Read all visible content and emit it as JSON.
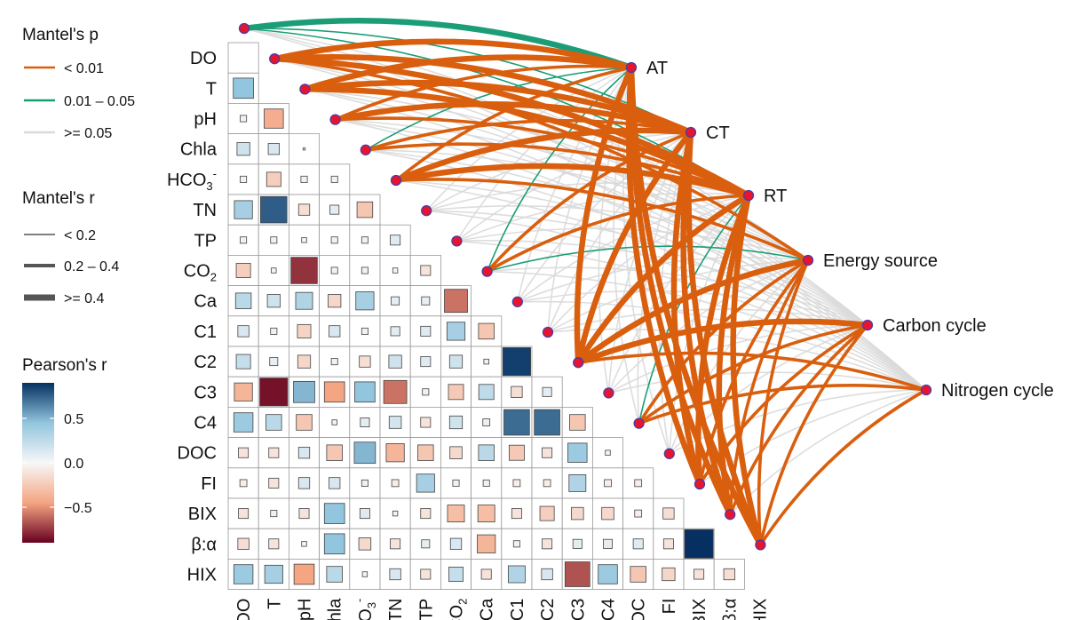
{
  "legend": {
    "mantel_p": {
      "title": "Mantel's p",
      "items": [
        {
          "label": "< 0.01",
          "color": "#D95F0E"
        },
        {
          "label": "0.01 – 0.05",
          "color": "#1B9E77"
        },
        {
          "label": ">= 0.05",
          "color": "#D9D9D9"
        }
      ]
    },
    "mantel_r": {
      "title": "Mantel's r",
      "items": [
        {
          "label": "< 0.2"
        },
        {
          "label": "0.2 – 0.4"
        },
        {
          "label": ">= 0.4"
        }
      ]
    },
    "pearson": {
      "title": "Pearson's r",
      "ticks": [
        "0.5",
        "0.0",
        "−0.5"
      ],
      "tick_values": [
        0.5,
        0.0,
        -0.5
      ],
      "range": [
        -0.9,
        0.9
      ],
      "colors": {
        "neg": "#67001F",
        "mid_neg": "#F4A582",
        "zero": "#F7F7F7",
        "mid_pos": "#92C5DE",
        "pos": "#053061"
      }
    }
  },
  "chart_data": {
    "type": "heatmap",
    "variables": [
      "DO",
      "T",
      "pH",
      "Chla",
      "HCO3-",
      "TN",
      "TP",
      "CO2",
      "Ca",
      "C1",
      "C2",
      "C3",
      "C4",
      "DOC",
      "FI",
      "BIX",
      "β:α",
      "HIX"
    ],
    "labels": {
      "DO": {
        "main": "DO"
      },
      "T": {
        "main": "T"
      },
      "pH": {
        "main": "pH"
      },
      "Chla": {
        "main": "Chla"
      },
      "HCO3-": {
        "main": "HCO",
        "sub": "3",
        "sup": "-"
      },
      "TN": {
        "main": "TN"
      },
      "TP": {
        "main": "TP"
      },
      "CO2": {
        "main": "CO",
        "sub": "2"
      },
      "Ca": {
        "main": "Ca"
      },
      "C1": {
        "main": "C1"
      },
      "C2": {
        "main": "C2"
      },
      "C3": {
        "main": "C3"
      },
      "C4": {
        "main": "C4"
      },
      "DOC": {
        "main": "DOC"
      },
      "FI": {
        "main": "FI"
      },
      "BIX": {
        "main": "BIX"
      },
      "β:α": {
        "main": "β:α"
      },
      "HIX": {
        "main": "HIX"
      }
    },
    "pearson_r_lower_triangle": [
      [],
      [
        0.5
      ],
      [
        0.05,
        -0.45
      ],
      [
        0.2,
        0.15,
        0.0
      ],
      [
        0.05,
        -0.25,
        0.05,
        0.05
      ],
      [
        0.4,
        0.85,
        -0.15,
        0.1,
        -0.3
      ],
      [
        0.05,
        0.05,
        0.03,
        0.05,
        0.05,
        0.12
      ],
      [
        -0.25,
        0.03,
        -0.85,
        0.05,
        0.05,
        0.03,
        -0.12
      ],
      [
        0.3,
        0.2,
        0.35,
        -0.2,
        0.4,
        0.08,
        0.08,
        -0.65
      ],
      [
        0.15,
        0.05,
        -0.22,
        0.15,
        0.05,
        0.1,
        0.12,
        0.4,
        -0.3
      ],
      [
        0.25,
        0.08,
        -0.2,
        0.05,
        -0.15,
        0.2,
        0.12,
        0.2,
        0.03,
        0.95
      ],
      [
        -0.4,
        -0.95,
        0.55,
        -0.5,
        0.5,
        -0.65,
        0.05,
        -0.28,
        0.28,
        -0.15,
        0.1
      ],
      [
        0.45,
        0.3,
        -0.3,
        0.03,
        0.1,
        0.18,
        -0.12,
        0.2,
        0.06,
        0.8,
        0.8,
        -0.3
      ],
      [
        -0.12,
        -0.12,
        0.15,
        -0.3,
        0.55,
        -0.4,
        -0.3,
        -0.18,
        0.3,
        -0.28,
        -0.12,
        0.45,
        0.03
      ],
      [
        -0.06,
        -0.12,
        0.15,
        0.15,
        0.05,
        -0.06,
        0.4,
        0.05,
        0.05,
        -0.06,
        -0.06,
        0.35,
        -0.06,
        -0.06
      ],
      [
        -0.12,
        0.05,
        -0.12,
        0.5,
        0.12,
        0.03,
        -0.12,
        -0.35,
        -0.35,
        -0.12,
        -0.25,
        -0.18,
        -0.18,
        -0.06,
        -0.15
      ],
      [
        -0.15,
        -0.12,
        0.03,
        0.5,
        -0.18,
        -0.12,
        0.08,
        0.15,
        -0.4,
        0.05,
        -0.12,
        0.1,
        0.1,
        0.12,
        -0.12,
        1.0
      ],
      [
        0.45,
        0.4,
        -0.5,
        0.3,
        0.03,
        0.15,
        -0.12,
        0.25,
        -0.12,
        0.35,
        0.15,
        -0.75,
        0.45,
        -0.3,
        -0.2,
        -0.12,
        -0.15
      ]
    ],
    "env_nodes": [
      "AT",
      "CT",
      "RT",
      "Energy source",
      "Carbon cycle",
      "Nitrogen cycle"
    ],
    "mantel_links": [
      {
        "from": "DO",
        "to": "AT",
        "p": "0.01-0.05",
        "r": ">=0.4"
      },
      {
        "from": "DO",
        "to": "CT",
        "p": "0.01-0.05",
        "r": "<0.2"
      },
      {
        "from": "DO",
        "to": "RT",
        "p": "0.01-0.05",
        "r": "<0.2"
      },
      {
        "from": "DO",
        "to": "Energy source",
        "p": ">=0.05",
        "r": "<0.2"
      },
      {
        "from": "DO",
        "to": "Carbon cycle",
        "p": ">=0.05",
        "r": "<0.2"
      },
      {
        "from": "DO",
        "to": "Nitrogen cycle",
        "p": ">=0.05",
        "r": "<0.2"
      },
      {
        "from": "T",
        "to": "AT",
        "p": "<0.01",
        "r": ">=0.4"
      },
      {
        "from": "T",
        "to": "CT",
        "p": "<0.01",
        "r": ">=0.4"
      },
      {
        "from": "T",
        "to": "RT",
        "p": "<0.01",
        "r": ">=0.4"
      },
      {
        "from": "T",
        "to": "Energy source",
        "p": "<0.01",
        "r": "0.2-0.4"
      },
      {
        "from": "T",
        "to": "Carbon cycle",
        "p": ">=0.05",
        "r": "<0.2"
      },
      {
        "from": "T",
        "to": "Nitrogen cycle",
        "p": ">=0.05",
        "r": "<0.2"
      },
      {
        "from": "pH",
        "to": "AT",
        "p": "<0.01",
        "r": ">=0.4"
      },
      {
        "from": "pH",
        "to": "CT",
        "p": "<0.01",
        "r": ">=0.4"
      },
      {
        "from": "pH",
        "to": "RT",
        "p": "<0.01",
        "r": ">=0.4"
      },
      {
        "from": "pH",
        "to": "Energy source",
        "p": ">=0.05",
        "r": "<0.2"
      },
      {
        "from": "pH",
        "to": "Carbon cycle",
        "p": ">=0.05",
        "r": "<0.2"
      },
      {
        "from": "pH",
        "to": "Nitrogen cycle",
        "p": ">=0.05",
        "r": "<0.2"
      },
      {
        "from": "Chla",
        "to": "AT",
        "p": "<0.01",
        "r": "0.2-0.4"
      },
      {
        "from": "Chla",
        "to": "CT",
        "p": "<0.01",
        "r": ">=0.4"
      },
      {
        "from": "Chla",
        "to": "RT",
        "p": "<0.01",
        "r": "0.2-0.4"
      },
      {
        "from": "Chla",
        "to": "Energy source",
        "p": ">=0.05",
        "r": "<0.2"
      },
      {
        "from": "Chla",
        "to": "Carbon cycle",
        "p": ">=0.05",
        "r": "<0.2"
      },
      {
        "from": "Chla",
        "to": "Nitrogen cycle",
        "p": ">=0.05",
        "r": "<0.2"
      },
      {
        "from": "HCO3-",
        "to": "AT",
        "p": "0.01-0.05",
        "r": "<0.2"
      },
      {
        "from": "HCO3-",
        "to": "CT",
        "p": "<0.01",
        "r": "0.2-0.4"
      },
      {
        "from": "HCO3-",
        "to": "RT",
        "p": "<0.01",
        "r": "0.2-0.4"
      },
      {
        "from": "HCO3-",
        "to": "Energy source",
        "p": ">=0.05",
        "r": "<0.2"
      },
      {
        "from": "HCO3-",
        "to": "Carbon cycle",
        "p": ">=0.05",
        "r": "<0.2"
      },
      {
        "from": "HCO3-",
        "to": "Nitrogen cycle",
        "p": ">=0.05",
        "r": "<0.2"
      },
      {
        "from": "TN",
        "to": "AT",
        "p": "<0.01",
        "r": "0.2-0.4"
      },
      {
        "from": "TN",
        "to": "CT",
        "p": "<0.01",
        "r": ">=0.4"
      },
      {
        "from": "TN",
        "to": "RT",
        "p": "<0.01",
        "r": ">=0.4"
      },
      {
        "from": "TN",
        "to": "Energy source",
        "p": "<0.01",
        "r": "0.2-0.4"
      },
      {
        "from": "TN",
        "to": "Carbon cycle",
        "p": ">=0.05",
        "r": "<0.2"
      },
      {
        "from": "TN",
        "to": "Nitrogen cycle",
        "p": ">=0.05",
        "r": "<0.2"
      },
      {
        "from": "TP",
        "to": "AT",
        "p": ">=0.05",
        "r": "<0.2"
      },
      {
        "from": "TP",
        "to": "CT",
        "p": ">=0.05",
        "r": "<0.2"
      },
      {
        "from": "TP",
        "to": "RT",
        "p": ">=0.05",
        "r": "<0.2"
      },
      {
        "from": "TP",
        "to": "Energy source",
        "p": ">=0.05",
        "r": "<0.2"
      },
      {
        "from": "TP",
        "to": "Carbon cycle",
        "p": ">=0.05",
        "r": "<0.2"
      },
      {
        "from": "TP",
        "to": "Nitrogen cycle",
        "p": ">=0.05",
        "r": "<0.2"
      },
      {
        "from": "CO2",
        "to": "AT",
        "p": ">=0.05",
        "r": "<0.2"
      },
      {
        "from": "CO2",
        "to": "CT",
        "p": ">=0.05",
        "r": "<0.2"
      },
      {
        "from": "CO2",
        "to": "RT",
        "p": ">=0.05",
        "r": "<0.2"
      },
      {
        "from": "CO2",
        "to": "Energy source",
        "p": ">=0.05",
        "r": "<0.2"
      },
      {
        "from": "CO2",
        "to": "Carbon cycle",
        "p": ">=0.05",
        "r": "<0.2"
      },
      {
        "from": "CO2",
        "to": "Nitrogen cycle",
        "p": ">=0.05",
        "r": "<0.2"
      },
      {
        "from": "Ca",
        "to": "AT",
        "p": "0.01-0.05",
        "r": "<0.2"
      },
      {
        "from": "Ca",
        "to": "CT",
        "p": "<0.01",
        "r": "0.2-0.4"
      },
      {
        "from": "Ca",
        "to": "RT",
        "p": "<0.01",
        "r": "0.2-0.4"
      },
      {
        "from": "Ca",
        "to": "Energy source",
        "p": "0.01-0.05",
        "r": "<0.2"
      },
      {
        "from": "Ca",
        "to": "Carbon cycle",
        "p": ">=0.05",
        "r": "<0.2"
      },
      {
        "from": "Ca",
        "to": "Nitrogen cycle",
        "p": ">=0.05",
        "r": "<0.2"
      },
      {
        "from": "C1",
        "to": "AT",
        "p": ">=0.05",
        "r": "<0.2"
      },
      {
        "from": "C1",
        "to": "CT",
        "p": ">=0.05",
        "r": "<0.2"
      },
      {
        "from": "C1",
        "to": "RT",
        "p": ">=0.05",
        "r": "<0.2"
      },
      {
        "from": "C1",
        "to": "Energy source",
        "p": ">=0.05",
        "r": "<0.2"
      },
      {
        "from": "C1",
        "to": "Carbon cycle",
        "p": ">=0.05",
        "r": "<0.2"
      },
      {
        "from": "C1",
        "to": "Nitrogen cycle",
        "p": ">=0.05",
        "r": "<0.2"
      },
      {
        "from": "C2",
        "to": "AT",
        "p": ">=0.05",
        "r": "<0.2"
      },
      {
        "from": "C2",
        "to": "CT",
        "p": ">=0.05",
        "r": "<0.2"
      },
      {
        "from": "C2",
        "to": "RT",
        "p": ">=0.05",
        "r": "<0.2"
      },
      {
        "from": "C2",
        "to": "Energy source",
        "p": ">=0.05",
        "r": "<0.2"
      },
      {
        "from": "C2",
        "to": "Carbon cycle",
        "p": ">=0.05",
        "r": "<0.2"
      },
      {
        "from": "C2",
        "to": "Nitrogen cycle",
        "p": ">=0.05",
        "r": "<0.2"
      },
      {
        "from": "C3",
        "to": "AT",
        "p": "<0.01",
        "r": ">=0.4"
      },
      {
        "from": "C3",
        "to": "CT",
        "p": "<0.01",
        "r": ">=0.4"
      },
      {
        "from": "C3",
        "to": "RT",
        "p": "<0.01",
        "r": ">=0.4"
      },
      {
        "from": "C3",
        "to": "Energy source",
        "p": "<0.01",
        "r": ">=0.4"
      },
      {
        "from": "C3",
        "to": "Carbon cycle",
        "p": "<0.01",
        "r": ">=0.4"
      },
      {
        "from": "C3",
        "to": "Nitrogen cycle",
        "p": "<0.01",
        "r": "0.2-0.4"
      },
      {
        "from": "C4",
        "to": "AT",
        "p": ">=0.05",
        "r": "<0.2"
      },
      {
        "from": "C4",
        "to": "CT",
        "p": ">=0.05",
        "r": "<0.2"
      },
      {
        "from": "C4",
        "to": "RT",
        "p": ">=0.05",
        "r": "<0.2"
      },
      {
        "from": "C4",
        "to": "Energy source",
        "p": ">=0.05",
        "r": "<0.2"
      },
      {
        "from": "C4",
        "to": "Carbon cycle",
        "p": ">=0.05",
        "r": "<0.2"
      },
      {
        "from": "C4",
        "to": "Nitrogen cycle",
        "p": ">=0.05",
        "r": "<0.2"
      },
      {
        "from": "DOC",
        "to": "AT",
        "p": ">=0.05",
        "r": "<0.2"
      },
      {
        "from": "DOC",
        "to": "CT",
        "p": ">=0.05",
        "r": "<0.2"
      },
      {
        "from": "DOC",
        "to": "RT",
        "p": "0.01-0.05",
        "r": "<0.2"
      },
      {
        "from": "DOC",
        "to": "Energy source",
        "p": "<0.01",
        "r": "0.2-0.4"
      },
      {
        "from": "DOC",
        "to": "Carbon cycle",
        "p": "<0.01",
        "r": "0.2-0.4"
      },
      {
        "from": "DOC",
        "to": "Nitrogen cycle",
        "p": "<0.01",
        "r": "0.2-0.4"
      },
      {
        "from": "FI",
        "to": "AT",
        "p": ">=0.05",
        "r": "<0.2"
      },
      {
        "from": "FI",
        "to": "CT",
        "p": ">=0.05",
        "r": "<0.2"
      },
      {
        "from": "FI",
        "to": "RT",
        "p": ">=0.05",
        "r": "<0.2"
      },
      {
        "from": "FI",
        "to": "Energy source",
        "p": ">=0.05",
        "r": "<0.2"
      },
      {
        "from": "FI",
        "to": "Carbon cycle",
        "p": ">=0.05",
        "r": "<0.2"
      },
      {
        "from": "FI",
        "to": "Nitrogen cycle",
        "p": ">=0.05",
        "r": "<0.2"
      },
      {
        "from": "BIX",
        "to": "AT",
        "p": "<0.01",
        "r": ">=0.4"
      },
      {
        "from": "BIX",
        "to": "CT",
        "p": "<0.01",
        "r": ">=0.4"
      },
      {
        "from": "BIX",
        "to": "RT",
        "p": "<0.01",
        "r": ">=0.4"
      },
      {
        "from": "BIX",
        "to": "Energy source",
        "p": "<0.01",
        "r": "0.2-0.4"
      },
      {
        "from": "BIX",
        "to": "Carbon cycle",
        "p": "<0.01",
        "r": "0.2-0.4"
      },
      {
        "from": "BIX",
        "to": "Nitrogen cycle",
        "p": ">=0.05",
        "r": "<0.2"
      },
      {
        "from": "β:α",
        "to": "AT",
        "p": "<0.01",
        "r": ">=0.4"
      },
      {
        "from": "β:α",
        "to": "CT",
        "p": "<0.01",
        "r": ">=0.4"
      },
      {
        "from": "β:α",
        "to": "RT",
        "p": "<0.01",
        "r": ">=0.4"
      },
      {
        "from": "β:α",
        "to": "Energy source",
        "p": "<0.01",
        "r": "0.2-0.4"
      },
      {
        "from": "β:α",
        "to": "Carbon cycle",
        "p": "<0.01",
        "r": "0.2-0.4"
      },
      {
        "from": "β:α",
        "to": "Nitrogen cycle",
        "p": ">=0.05",
        "r": "<0.2"
      },
      {
        "from": "HIX",
        "to": "AT",
        "p": "<0.01",
        "r": ">=0.4"
      },
      {
        "from": "HIX",
        "to": "CT",
        "p": "<0.01",
        "r": ">=0.4"
      },
      {
        "from": "HIX",
        "to": "RT",
        "p": "<0.01",
        "r": ">=0.4"
      },
      {
        "from": "HIX",
        "to": "Energy source",
        "p": "<0.01",
        "r": "0.2-0.4"
      },
      {
        "from": "HIX",
        "to": "Carbon cycle",
        "p": "<0.01",
        "r": "0.2-0.4"
      },
      {
        "from": "HIX",
        "to": "Nitrogen cycle",
        "p": "<0.01",
        "r": "0.2-0.4"
      }
    ]
  },
  "node_style": {
    "fill": "#E8142E",
    "stroke": "#4B3BA8"
  }
}
